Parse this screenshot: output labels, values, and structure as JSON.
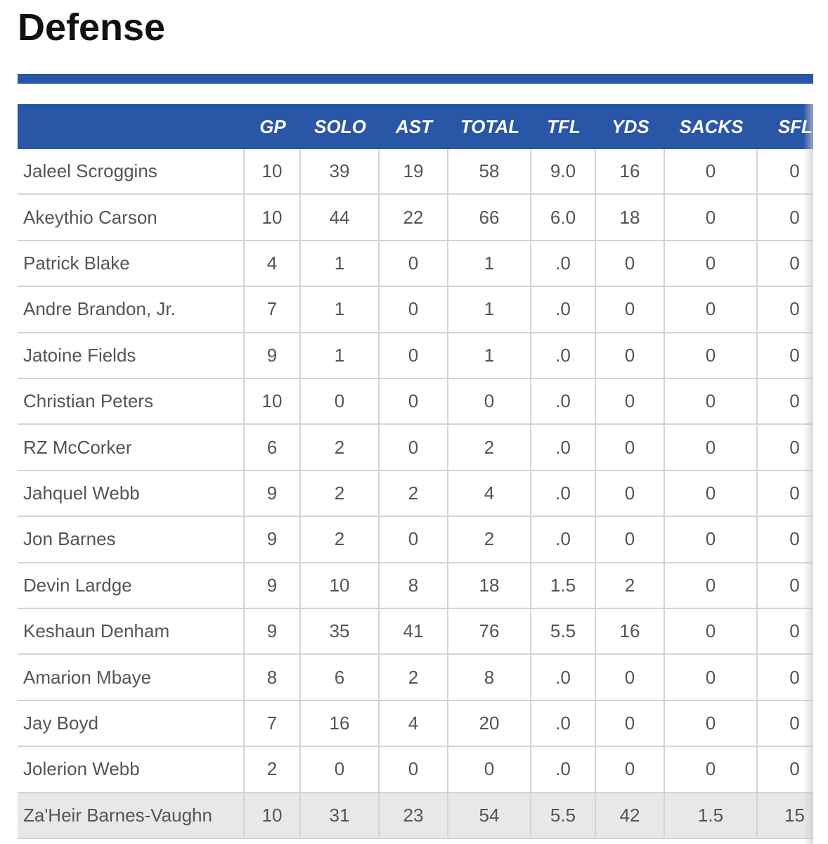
{
  "header": {
    "title": "Defense"
  },
  "table": {
    "columns": [
      "",
      "GP",
      "SOLO",
      "AST",
      "TOTAL",
      "TFL",
      "YDS",
      "SACKS",
      "SFL"
    ],
    "rows": [
      [
        "Jaleel Scroggins",
        "10",
        "39",
        "19",
        "58",
        "9.0",
        "16",
        "0",
        "0"
      ],
      [
        "Akeythio Carson",
        "10",
        "44",
        "22",
        "66",
        "6.0",
        "18",
        "0",
        "0"
      ],
      [
        "Patrick Blake",
        "4",
        "1",
        "0",
        "1",
        ".0",
        "0",
        "0",
        "0"
      ],
      [
        "Andre Brandon, Jr.",
        "7",
        "1",
        "0",
        "1",
        ".0",
        "0",
        "0",
        "0"
      ],
      [
        "Jatoine Fields",
        "9",
        "1",
        "0",
        "1",
        ".0",
        "0",
        "0",
        "0"
      ],
      [
        "Christian Peters",
        "10",
        "0",
        "0",
        "0",
        ".0",
        "0",
        "0",
        "0"
      ],
      [
        "RZ McCorker",
        "6",
        "2",
        "0",
        "2",
        ".0",
        "0",
        "0",
        "0"
      ],
      [
        "Jahquel Webb",
        "9",
        "2",
        "2",
        "4",
        ".0",
        "0",
        "0",
        "0"
      ],
      [
        "Jon Barnes",
        "9",
        "2",
        "0",
        "2",
        ".0",
        "0",
        "0",
        "0"
      ],
      [
        "Devin Lardge",
        "9",
        "10",
        "8",
        "18",
        "1.5",
        "2",
        "0",
        "0"
      ],
      [
        "Keshaun Denham",
        "9",
        "35",
        "41",
        "76",
        "5.5",
        "16",
        "0",
        "0"
      ],
      [
        "Amarion Mbaye",
        "8",
        "6",
        "2",
        "8",
        ".0",
        "0",
        "0",
        "0"
      ],
      [
        "Jay Boyd",
        "7",
        "16",
        "4",
        "20",
        ".0",
        "0",
        "0",
        "0"
      ],
      [
        "Jolerion Webb",
        "2",
        "0",
        "0",
        "0",
        ".0",
        "0",
        "0",
        "0"
      ],
      [
        "Za'Heir Barnes-Vaughn",
        "10",
        "31",
        "23",
        "54",
        "5.5",
        "42",
        "1.5",
        "15"
      ]
    ]
  }
}
